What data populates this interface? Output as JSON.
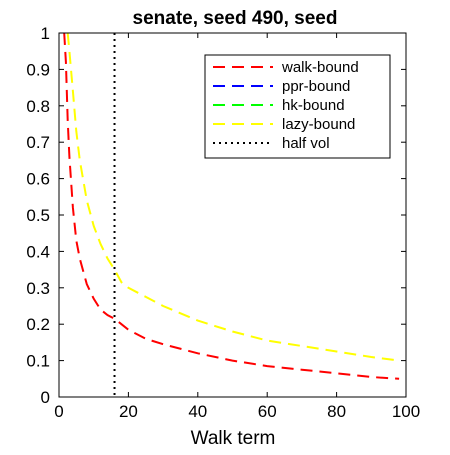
{
  "chart_data": {
    "type": "line",
    "title": "senate, seed 490, seed",
    "xlabel": "Walk term",
    "ylabel": "",
    "xlim": [
      0,
      100
    ],
    "ylim": [
      0,
      1
    ],
    "x_ticks": [
      0,
      20,
      40,
      60,
      80,
      100
    ],
    "y_ticks": [
      0,
      0.1,
      0.2,
      0.3,
      0.4,
      0.5,
      0.6,
      0.7,
      0.8,
      0.9,
      1
    ],
    "grid": false,
    "legend_position": "top-right",
    "vertical_line": {
      "name": "half vol",
      "x": 16,
      "color": "#000000",
      "style": "dotted"
    },
    "series": [
      {
        "name": "walk-bound",
        "color": "#ff0000",
        "style": "dashed",
        "x": [
          1.5,
          2,
          2.5,
          3,
          4,
          5,
          6,
          8,
          10,
          12,
          14,
          16,
          20,
          25,
          30,
          40,
          50,
          60,
          70,
          80,
          90,
          98
        ],
        "y": [
          1.0,
          0.92,
          0.76,
          0.66,
          0.52,
          0.43,
          0.38,
          0.31,
          0.27,
          0.24,
          0.225,
          0.215,
          0.185,
          0.16,
          0.145,
          0.12,
          0.1,
          0.085,
          0.075,
          0.065,
          0.055,
          0.05
        ]
      },
      {
        "name": "ppr-bound",
        "color": "#0000ff",
        "style": "dashed",
        "x": [],
        "y": []
      },
      {
        "name": "hk-bound",
        "color": "#00ff00",
        "style": "dashed",
        "x": [],
        "y": []
      },
      {
        "name": "lazy-bound",
        "color": "#ffff00",
        "style": "dashed",
        "x": [
          2.5,
          3,
          4,
          5,
          6,
          8,
          10,
          12,
          14,
          16,
          18,
          20,
          25,
          30,
          40,
          50,
          60,
          70,
          80,
          90,
          98
        ],
        "y": [
          1.0,
          0.95,
          0.84,
          0.73,
          0.65,
          0.54,
          0.47,
          0.42,
          0.38,
          0.35,
          0.315,
          0.3,
          0.275,
          0.25,
          0.21,
          0.18,
          0.155,
          0.14,
          0.125,
          0.11,
          0.1
        ]
      }
    ]
  }
}
